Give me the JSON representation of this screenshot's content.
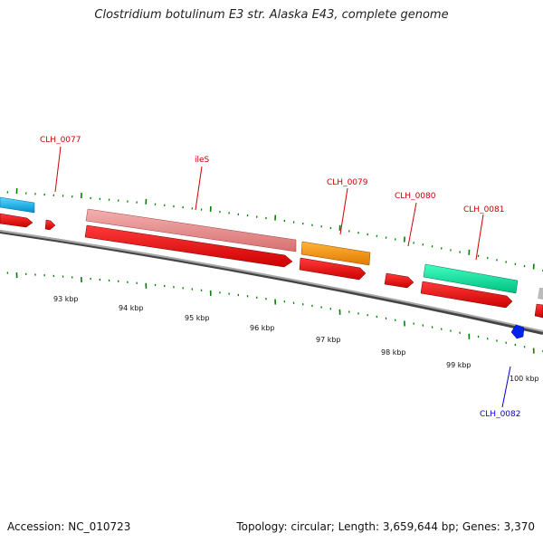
{
  "title": "Clostridium botulinum E3 str. Alaska E43, complete genome",
  "footer": {
    "accession": "Accession: NC_010723",
    "topology": "Topology: circular; Length: 3,659,644 bp; Genes: 3,370"
  },
  "colors": {
    "cds": "#ff0000",
    "rrna": "#ff9a00",
    "trna": "#0000ff",
    "cyan_feature": "#00c3ff",
    "pink_feature": "#ee8c8c",
    "green_feature": "#00f0a0",
    "backbone": "#8a8a8a",
    "tick": "#008000",
    "label_top": "#cc0000",
    "label_bottom": "#0000cc"
  },
  "gene_labels_top": [
    {
      "id": "CLH_0077"
    },
    {
      "id": "ileS"
    },
    {
      "id": "CLH_0079"
    },
    {
      "id": "CLH_0080"
    },
    {
      "id": "CLH_0081"
    }
  ],
  "gene_labels_bottom": [
    {
      "id": "CLH_0082"
    }
  ],
  "kbp_labels": [
    "93 kbp",
    "94 kbp",
    "95 kbp",
    "96 kbp",
    "97 kbp",
    "98 kbp",
    "99 kbp",
    "100 kbp"
  ]
}
